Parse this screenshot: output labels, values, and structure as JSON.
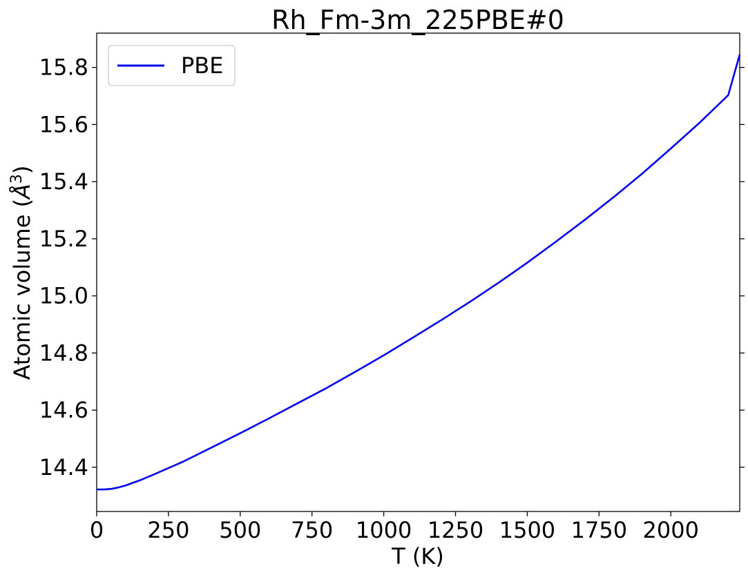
{
  "chart_data": {
    "type": "line",
    "title": "Rh_Fm-3m_225PBE#0",
    "xlabel": "T (K)",
    "ylabel_main": "Atomic volume (",
    "ylabel_unit": "Å",
    "ylabel_exp": "3",
    "ylabel_close": ")",
    "xlim": [
      0,
      2240
    ],
    "ylim": [
      14.245,
      15.92
    ],
    "xticks": [
      0,
      250,
      500,
      750,
      1000,
      1250,
      1500,
      1750,
      2000
    ],
    "xtick_labels": [
      "0",
      "250",
      "500",
      "750",
      "1000",
      "1250",
      "1500",
      "1750",
      "2000"
    ],
    "yticks": [
      14.4,
      14.6,
      14.8,
      15.0,
      15.2,
      15.4,
      15.6,
      15.8
    ],
    "ytick_labels": [
      "14.4",
      "14.6",
      "14.8",
      "15.0",
      "15.2",
      "15.4",
      "15.6",
      "15.8"
    ],
    "legend_position": "top-left",
    "grid": false,
    "series": [
      {
        "name": "PBE",
        "color": "#0000ee",
        "x": [
          0,
          25,
          50,
          75,
          100,
          150,
          200,
          250,
          300,
          400,
          500,
          600,
          700,
          800,
          900,
          1000,
          1100,
          1200,
          1300,
          1400,
          1500,
          1600,
          1700,
          1800,
          1900,
          2000,
          2100,
          2200,
          2240
        ],
        "y": [
          14.322,
          14.322,
          14.324,
          14.329,
          14.336,
          14.354,
          14.375,
          14.397,
          14.419,
          14.469,
          14.519,
          14.571,
          14.624,
          14.677,
          14.734,
          14.792,
          14.853,
          14.915,
          14.979,
          15.046,
          15.116,
          15.19,
          15.266,
          15.345,
          15.428,
          15.516,
          15.606,
          15.703,
          15.845
        ]
      }
    ]
  }
}
